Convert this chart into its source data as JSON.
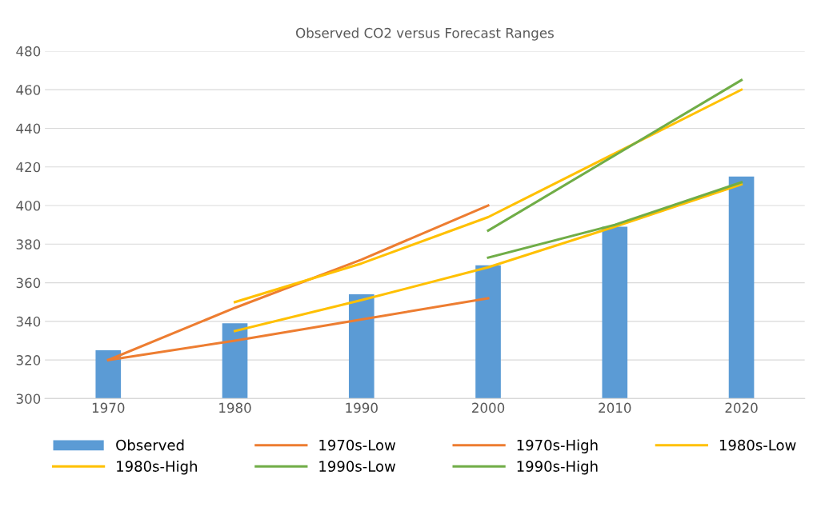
{
  "chart_data": {
    "type": "bar",
    "title": "Observed CO2 versus Forecast Ranges",
    "categories": [
      "1970",
      "1980",
      "1990",
      "2000",
      "2010",
      "2020"
    ],
    "series": [
      {
        "name": "Observed",
        "color": "#5b9bd5",
        "values": [
          325,
          339,
          354,
          369,
          389,
          415
        ]
      },
      {
        "name": "1970s-Low",
        "type": "line",
        "color": "#ed7d31",
        "values": [
          320,
          330,
          341,
          352,
          null,
          null
        ]
      },
      {
        "name": "1970s-High",
        "type": "line",
        "color": "#ed7d31",
        "values": [
          320,
          347,
          372,
          400,
          null,
          null
        ]
      },
      {
        "name": "1980s-Low",
        "type": "line",
        "color": "#ffc000",
        "values": [
          null,
          335,
          351,
          368,
          389,
          411
        ]
      },
      {
        "name": "1980s-High",
        "type": "line",
        "color": "#ffc000",
        "values": [
          null,
          350,
          370,
          394,
          427,
          460
        ]
      },
      {
        "name": "1990s-Low",
        "type": "line",
        "color": "#70ad47",
        "values": [
          null,
          null,
          null,
          373,
          390,
          412
        ]
      },
      {
        "name": "1990s-High",
        "type": "line",
        "color": "#70ad47",
        "values": [
          null,
          null,
          null,
          387,
          426,
          465
        ]
      }
    ],
    "ylim": [
      300,
      480
    ],
    "yticks": [
      300,
      320,
      340,
      360,
      380,
      400,
      420,
      440,
      460,
      480
    ],
    "grid": "y",
    "legend": "bottom",
    "marker": "none",
    "line_style": "solid"
  }
}
